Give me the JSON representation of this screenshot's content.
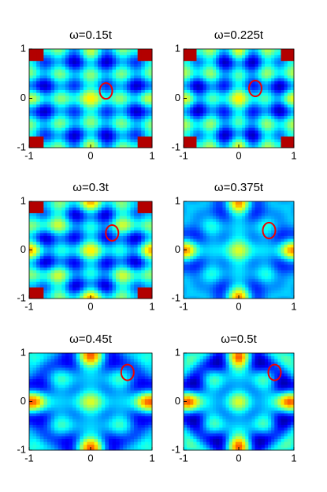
{
  "chart_data": [
    {
      "type": "heatmap",
      "title": "ω=0.15t",
      "xlim": [
        -1,
        1
      ],
      "ylim": [
        -1,
        1
      ],
      "xticks": [
        -1,
        0,
        1
      ],
      "yticks": [
        -1,
        0,
        1
      ]
    },
    {
      "type": "heatmap",
      "title": "ω=0.225t",
      "xlim": [
        -1,
        1
      ],
      "ylim": [
        -1,
        1
      ],
      "xticks": [
        -1,
        0,
        1
      ],
      "yticks": [
        -1,
        0,
        1
      ]
    },
    {
      "type": "heatmap",
      "title": "ω=0.3t",
      "xlim": [
        -1,
        1
      ],
      "ylim": [
        -1,
        1
      ],
      "xticks": [
        -1,
        0,
        1
      ],
      "yticks": [
        -1,
        0,
        1
      ]
    },
    {
      "type": "heatmap",
      "title": "ω=0.375t",
      "xlim": [
        -1,
        1
      ],
      "ylim": [
        -1,
        1
      ],
      "xticks": [
        -1,
        0,
        1
      ],
      "yticks": [
        -1,
        0,
        1
      ]
    },
    {
      "type": "heatmap",
      "title": "ω=0.45t",
      "xlim": [
        -1,
        1
      ],
      "ylim": [
        -1,
        1
      ],
      "xticks": [
        -1,
        0,
        1
      ],
      "yticks": [
        -1,
        0,
        1
      ]
    },
    {
      "type": "heatmap",
      "title": "ω=0.5t",
      "xlim": [
        -1,
        1
      ],
      "ylim": [
        -1,
        1
      ],
      "xticks": [
        -1,
        0,
        1
      ],
      "yticks": [
        -1,
        0,
        1
      ]
    }
  ]
}
